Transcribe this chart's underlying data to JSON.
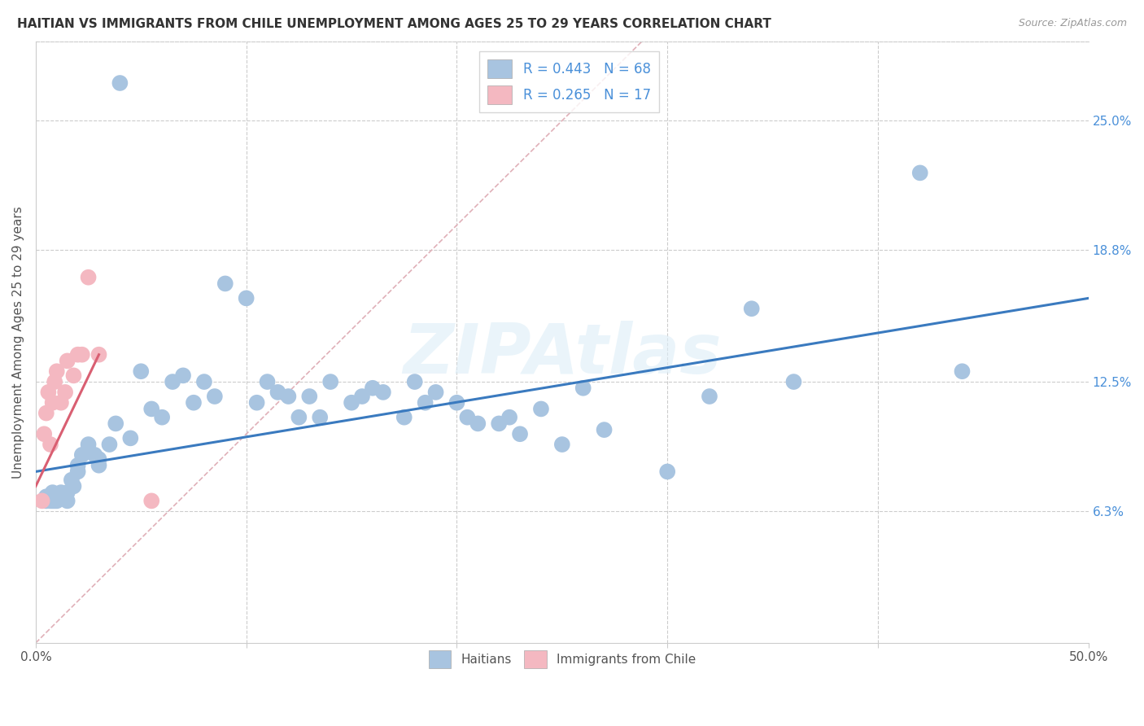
{
  "title": "HAITIAN VS IMMIGRANTS FROM CHILE UNEMPLOYMENT AMONG AGES 25 TO 29 YEARS CORRELATION CHART",
  "source": "Source: ZipAtlas.com",
  "ylabel": "Unemployment Among Ages 25 to 29 years",
  "x_min": 0.0,
  "x_max": 0.5,
  "y_min": 0.0,
  "y_max": 0.288,
  "x_tick_positions": [
    0.0,
    0.1,
    0.2,
    0.3,
    0.4,
    0.5
  ],
  "y_ticks_right": [
    0.063,
    0.125,
    0.188,
    0.25
  ],
  "y_tick_labels_right": [
    "6.3%",
    "12.5%",
    "18.8%",
    "25.0%"
  ],
  "legend_label1": "Haitians",
  "legend_label2": "Immigrants from Chile",
  "r1": 0.443,
  "n1": 68,
  "r2": 0.265,
  "n2": 17,
  "color_haitian": "#a8c4e0",
  "color_chile": "#f4b8c1",
  "color_line1": "#3a7abf",
  "color_line2": "#d95f72",
  "color_diag": "#e0b0b8",
  "background_color": "#ffffff",
  "watermark": "ZIPAtlas",
  "haitian_x": [
    0.005,
    0.005,
    0.007,
    0.008,
    0.008,
    0.009,
    0.01,
    0.01,
    0.012,
    0.013,
    0.015,
    0.015,
    0.017,
    0.018,
    0.02,
    0.02,
    0.022,
    0.025,
    0.025,
    0.028,
    0.03,
    0.03,
    0.035,
    0.038,
    0.04,
    0.045,
    0.05,
    0.055,
    0.06,
    0.065,
    0.07,
    0.075,
    0.08,
    0.085,
    0.09,
    0.1,
    0.105,
    0.11,
    0.115,
    0.12,
    0.125,
    0.13,
    0.135,
    0.14,
    0.15,
    0.155,
    0.16,
    0.165,
    0.175,
    0.18,
    0.185,
    0.19,
    0.2,
    0.205,
    0.21,
    0.22,
    0.225,
    0.23,
    0.24,
    0.25,
    0.26,
    0.27,
    0.3,
    0.32,
    0.34,
    0.36,
    0.42,
    0.44
  ],
  "haitian_y": [
    0.068,
    0.07,
    0.068,
    0.068,
    0.072,
    0.068,
    0.07,
    0.068,
    0.072,
    0.07,
    0.072,
    0.068,
    0.078,
    0.075,
    0.085,
    0.082,
    0.09,
    0.092,
    0.095,
    0.09,
    0.088,
    0.085,
    0.095,
    0.105,
    0.268,
    0.098,
    0.13,
    0.112,
    0.108,
    0.125,
    0.128,
    0.115,
    0.125,
    0.118,
    0.172,
    0.165,
    0.115,
    0.125,
    0.12,
    0.118,
    0.108,
    0.118,
    0.108,
    0.125,
    0.115,
    0.118,
    0.122,
    0.12,
    0.108,
    0.125,
    0.115,
    0.12,
    0.115,
    0.108,
    0.105,
    0.105,
    0.108,
    0.1,
    0.112,
    0.095,
    0.122,
    0.102,
    0.082,
    0.118,
    0.16,
    0.125,
    0.225,
    0.13
  ],
  "chile_x": [
    0.003,
    0.004,
    0.005,
    0.006,
    0.007,
    0.008,
    0.009,
    0.01,
    0.012,
    0.014,
    0.015,
    0.018,
    0.02,
    0.022,
    0.025,
    0.03,
    0.055
  ],
  "chile_y": [
    0.068,
    0.1,
    0.11,
    0.12,
    0.095,
    0.115,
    0.125,
    0.13,
    0.115,
    0.12,
    0.135,
    0.128,
    0.138,
    0.138,
    0.175,
    0.138,
    0.068
  ],
  "line1_x_start": 0.0,
  "line1_x_end": 0.5,
  "line1_y_start": 0.082,
  "line1_y_end": 0.165,
  "line2_x_start": 0.0,
  "line2_x_end": 0.03,
  "line2_y_start": 0.075,
  "line2_y_end": 0.138
}
